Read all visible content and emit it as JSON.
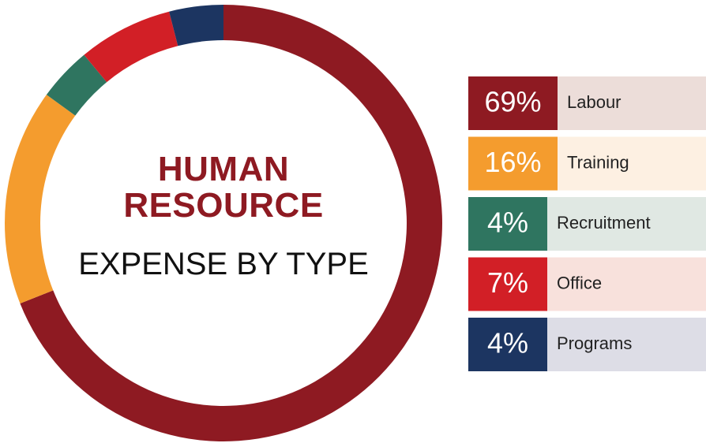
{
  "chart_data": {
    "type": "pie",
    "title": "HUMAN RESOURCE",
    "subtitle": "EXPENSE BY TYPE",
    "categories": [
      "Labour",
      "Training",
      "Recruitment",
      "Office",
      "Programs"
    ],
    "values": [
      69,
      16,
      4,
      7,
      4
    ],
    "value_labels": [
      "69%",
      "16%",
      "4%",
      "7%",
      "4%"
    ],
    "colors": [
      "#8e1a22",
      "#f49c2e",
      "#2f7560",
      "#d21f26",
      "#1c3561"
    ],
    "legend": "right"
  }
}
